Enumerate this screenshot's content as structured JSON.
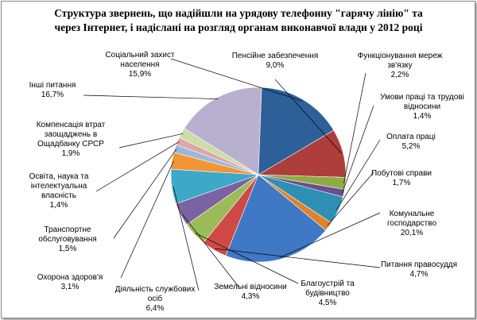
{
  "chart_data": {
    "type": "pie",
    "title": "Структура звернень, що надійшли на урядову телефонну \"гарячу лінію\" та\nчерез Інтернет,  і надіслані на розгляд  органам виконавчої влади у 2012 році",
    "start_angle_deg": -30.6,
    "direction": "clockwise",
    "slices": [
      {
        "label": "Пенсійне забезпечення",
        "value_text": "9,0%",
        "value": 9.0,
        "color": "#ad3e3b"
      },
      {
        "label": "Функціонування мереж зв'язку",
        "value_text": "2,2%",
        "value": 2.2,
        "color": "#8eaa42"
      },
      {
        "label": "Умови праці та трудові відносини",
        "value_text": "1,4%",
        "value": 1.4,
        "color": "#6a4f8f"
      },
      {
        "label": "Оплата праці",
        "value_text": "5,2%",
        "value": 5.2,
        "color": "#2f8fb3"
      },
      {
        "label": "Побутові справи",
        "value_text": "1,7%",
        "value": 1.7,
        "color": "#e0822b"
      },
      {
        "label": "Комунальне господарство",
        "value_text": "20,1%",
        "value": 20.1,
        "color": "#3f78c4"
      },
      {
        "label": "Питання правосуддя",
        "value_text": "4,7%",
        "value": 4.7,
        "color": "#cf4a47"
      },
      {
        "label": "Благоустрій та будівництво",
        "value_text": "4,5%",
        "value": 4.5,
        "color": "#9bbb59"
      },
      {
        "label": "Земельні відносини",
        "value_text": "4,3%",
        "value": 4.3,
        "color": "#7b62a3"
      },
      {
        "label": "Діяльність службових осіб",
        "value_text": "6,4%",
        "value": 6.4,
        "color": "#3ea8c9"
      },
      {
        "label": "Охорона здоров'я",
        "value_text": "3,1%",
        "value": 3.1,
        "color": "#f19535"
      },
      {
        "label": "Транспортне обслуговування",
        "value_text": "1,5%",
        "value": 1.5,
        "color": "#9db6dc"
      },
      {
        "label": "Освіта, наука та інтелектуальна власність",
        "value_text": "1,4%",
        "value": 1.4,
        "color": "#e0a6a6"
      },
      {
        "label": "Компенсація втрат заощаджень в Ощадбанку СРСР",
        "value_text": "1,9%",
        "value": 1.9,
        "color": "#cadda7"
      },
      {
        "label": "Інші питання",
        "value_text": "16,7%",
        "value": 16.7,
        "color": "#b9b0cf"
      },
      {
        "label": "Соціальний захист населення",
        "value_text": "15,9%",
        "value": 15.9,
        "color": "#2d5f99"
      }
    ]
  }
}
